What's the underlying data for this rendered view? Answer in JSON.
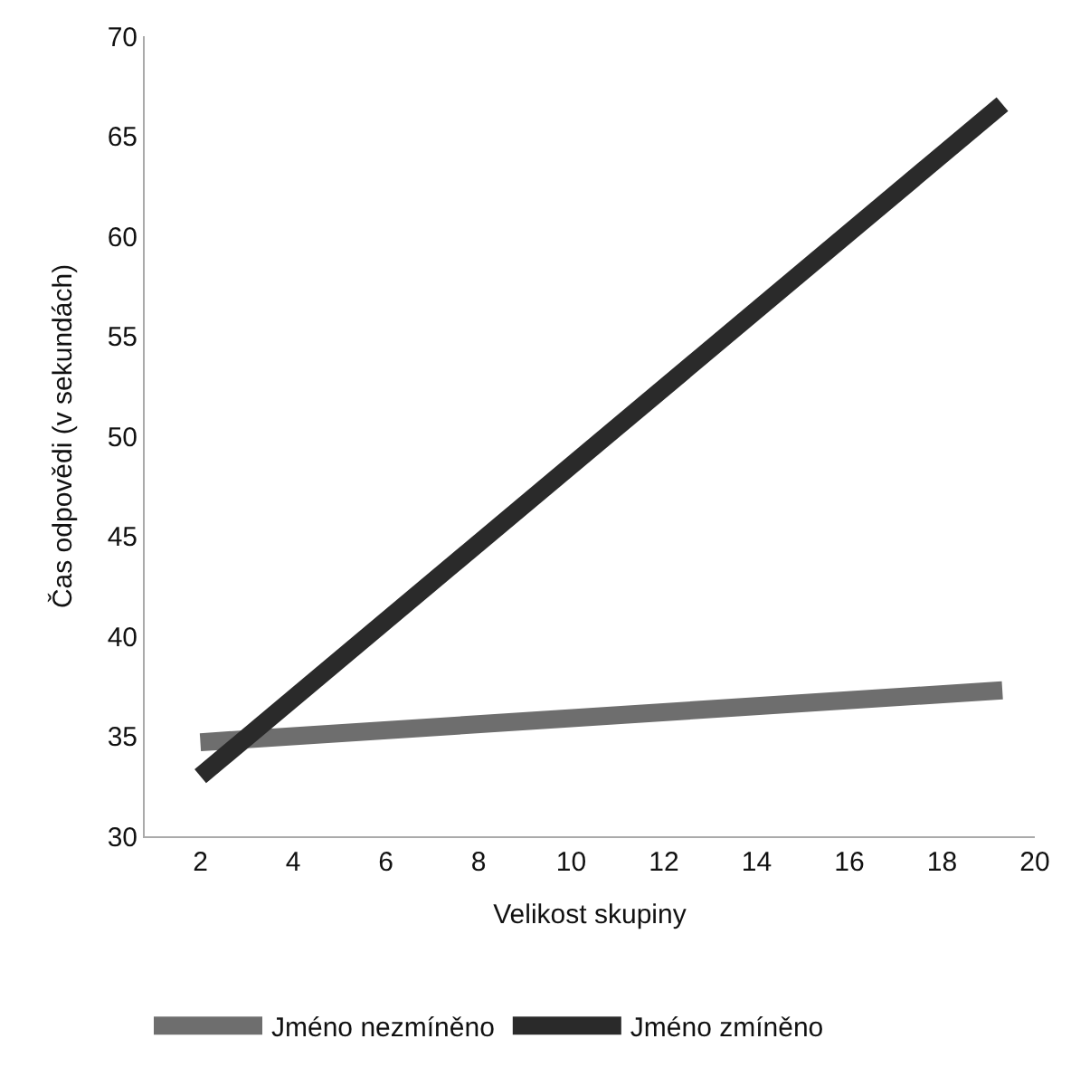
{
  "chart_data": {
    "type": "line",
    "xlabel": "Velikost skupiny",
    "ylabel": "Čas odpovědi (v sekundách)",
    "xlim": [
      0.8,
      20
    ],
    "xticks": [
      2,
      4,
      6,
      8,
      10,
      12,
      14,
      16,
      18,
      20
    ],
    "ylim": [
      30,
      70
    ],
    "yticks": [
      30,
      35,
      40,
      45,
      50,
      55,
      60,
      65,
      70
    ],
    "legend": "bottom",
    "x": [
      2,
      19.3
    ],
    "marker": "none",
    "line_style": "solid",
    "series": [
      {
        "name": "Jméno nezmíněno",
        "color": "#6e6e6e",
        "values": [
          34.7,
          37.3
        ]
      },
      {
        "name": "Jméno zmíněno",
        "color": "#2a2a2a",
        "values": [
          33,
          66.6
        ]
      }
    ]
  }
}
